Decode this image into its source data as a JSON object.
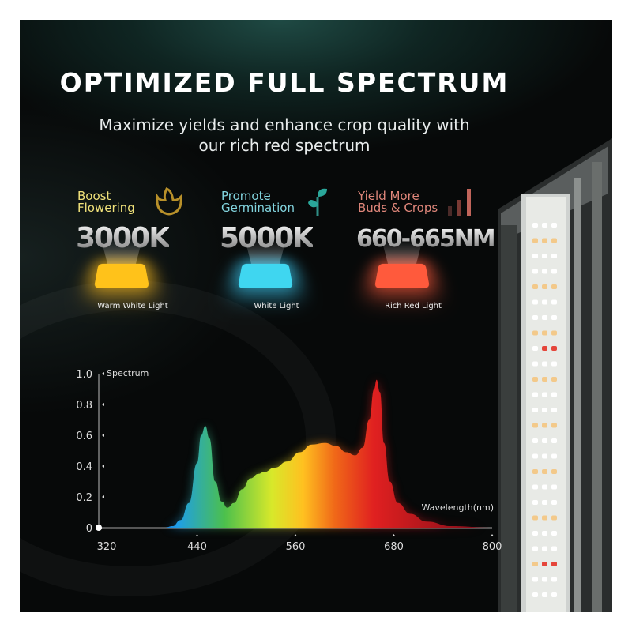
{
  "header": {
    "title": "OPTIMIZED FULL SPECTRUM",
    "subtitle_line1": "Maximize yields and enhance crop quality with",
    "subtitle_line2": "our rich red spectrum"
  },
  "features": [
    {
      "head1": "Boost",
      "head2": "Flowering",
      "value": "3000K",
      "label": "Warm White Light",
      "color": "#f5d85a",
      "lamp_color": "#ffc21a",
      "icon": "flower-bud-icon"
    },
    {
      "head1": "Promote",
      "head2": "Germination",
      "value": "5000K",
      "label": "White Light",
      "color": "#7fd3dc",
      "lamp_color": "#3fd6f0",
      "icon": "sprout-icon"
    },
    {
      "head1": "Yield More",
      "head2": "Buds & Crops",
      "value": "660-665NM",
      "label": "Rich Red Light",
      "color": "#e88a7e",
      "lamp_color": "#ff5a3c",
      "icon": "bar-growth-icon"
    }
  ],
  "chart_data": {
    "type": "area",
    "title": "",
    "ylabel": "Spectrum",
    "xlabel": "Wavelength(nm)",
    "xlim": [
      320,
      800
    ],
    "ylim": [
      0,
      1.0
    ],
    "x_ticks": [
      "320",
      "440",
      "560",
      "680",
      "800"
    ],
    "y_ticks": [
      "0",
      "0.2",
      "0.4",
      "0.6",
      "0.8",
      "1.0"
    ],
    "grid": false,
    "fill": "visible-spectrum gradient",
    "x": [
      320,
      400,
      410,
      420,
      430,
      440,
      445,
      450,
      455,
      462,
      470,
      477,
      485,
      495,
      505,
      515,
      521,
      535,
      550,
      565,
      580,
      596,
      610,
      622,
      633,
      642,
      650,
      656,
      659,
      663,
      668,
      675,
      685,
      700,
      720,
      750,
      800
    ],
    "y": [
      0,
      0,
      0.01,
      0.05,
      0.16,
      0.42,
      0.6,
      0.66,
      0.58,
      0.3,
      0.17,
      0.13,
      0.16,
      0.25,
      0.32,
      0.35,
      0.36,
      0.39,
      0.43,
      0.49,
      0.54,
      0.55,
      0.53,
      0.49,
      0.47,
      0.52,
      0.7,
      0.9,
      0.96,
      0.88,
      0.55,
      0.3,
      0.16,
      0.09,
      0.04,
      0.01,
      0
    ]
  }
}
